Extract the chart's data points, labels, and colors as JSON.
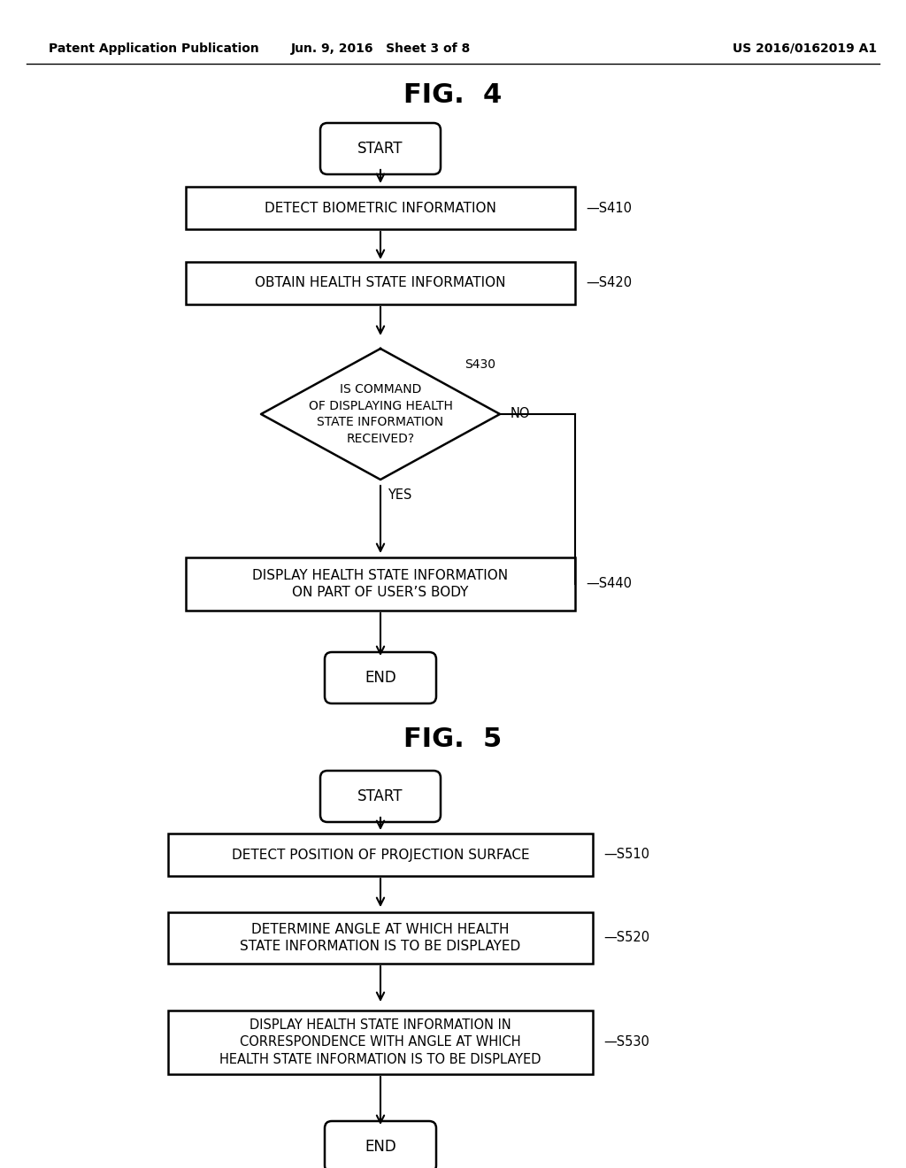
{
  "background_color": "#ffffff",
  "header_left": "Patent Application Publication",
  "header_middle": "Jun. 9, 2016   Sheet 3 of 8",
  "header_right": "US 2016/0162019 A1",
  "fig4_title": "FIG.  4",
  "fig5_title": "FIG.  5"
}
